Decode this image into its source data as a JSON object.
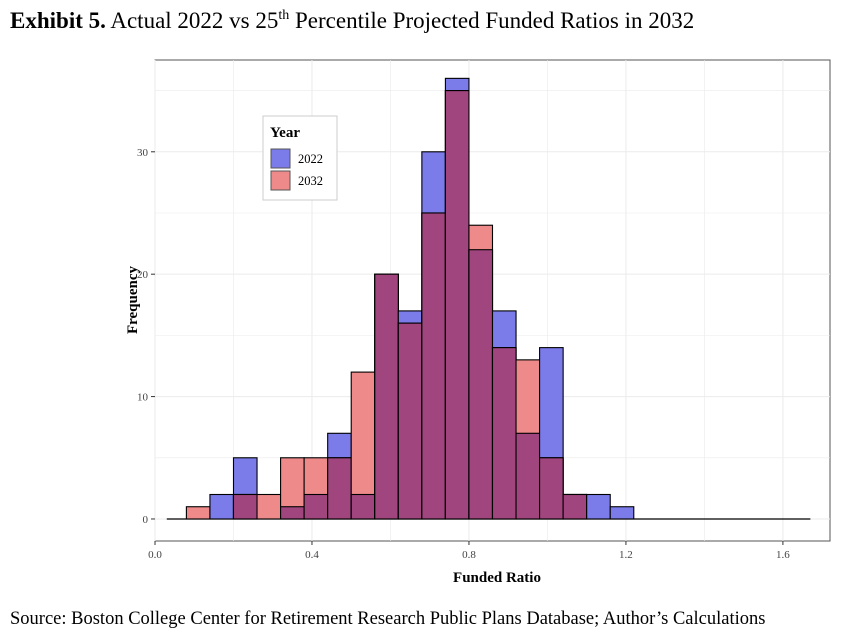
{
  "exhibit": {
    "label": "Exhibit 5.",
    "title_pre": "Actual 2022 vs 25",
    "title_sup": "th",
    "title_post": "Percentile Projected Funded Ratios in 2032"
  },
  "source": "Source: Boston College Center for Retirement Research Public Plans Database; Author’s Calculations",
  "chart_data": {
    "type": "histogram",
    "xlabel": "Funded Ratio",
    "ylabel": "Frequency",
    "xlim": [
      0.0,
      1.72
    ],
    "ylim": [
      -1.8,
      37.5
    ],
    "xticks": [
      0.0,
      0.4,
      0.8,
      1.2,
      1.6
    ],
    "xtick_labels": [
      "0.0",
      "0.4",
      "0.8",
      "1.2",
      "1.6"
    ],
    "yticks": [
      0,
      10,
      20,
      30
    ],
    "ytick_labels": [
      "0",
      "10",
      "20",
      "30"
    ],
    "grid": true,
    "bin_width": 0.06,
    "bin_starts": [
      0.08,
      0.14,
      0.2,
      0.26,
      0.32,
      0.38,
      0.44,
      0.5,
      0.56,
      0.62,
      0.68,
      0.74,
      0.8,
      0.86,
      0.92,
      0.98,
      1.04,
      1.1,
      1.16
    ],
    "series": [
      {
        "name": "2022",
        "color": "#7b7bea",
        "values": [
          0,
          2,
          5,
          0,
          1,
          2,
          7,
          2,
          20,
          17,
          30,
          36,
          22,
          17,
          7,
          14,
          2,
          2,
          1
        ]
      },
      {
        "name": "2032",
        "color": "#ee8a8a",
        "values": [
          1,
          0,
          2,
          2,
          5,
          5,
          5,
          12,
          20,
          16,
          25,
          35,
          24,
          14,
          13,
          5,
          2,
          0,
          0
        ]
      }
    ],
    "overlap_color": "#a0457e",
    "baseline_range": [
      0.03,
      1.67
    ],
    "legend": {
      "title": "Year",
      "position": "top-left"
    }
  }
}
